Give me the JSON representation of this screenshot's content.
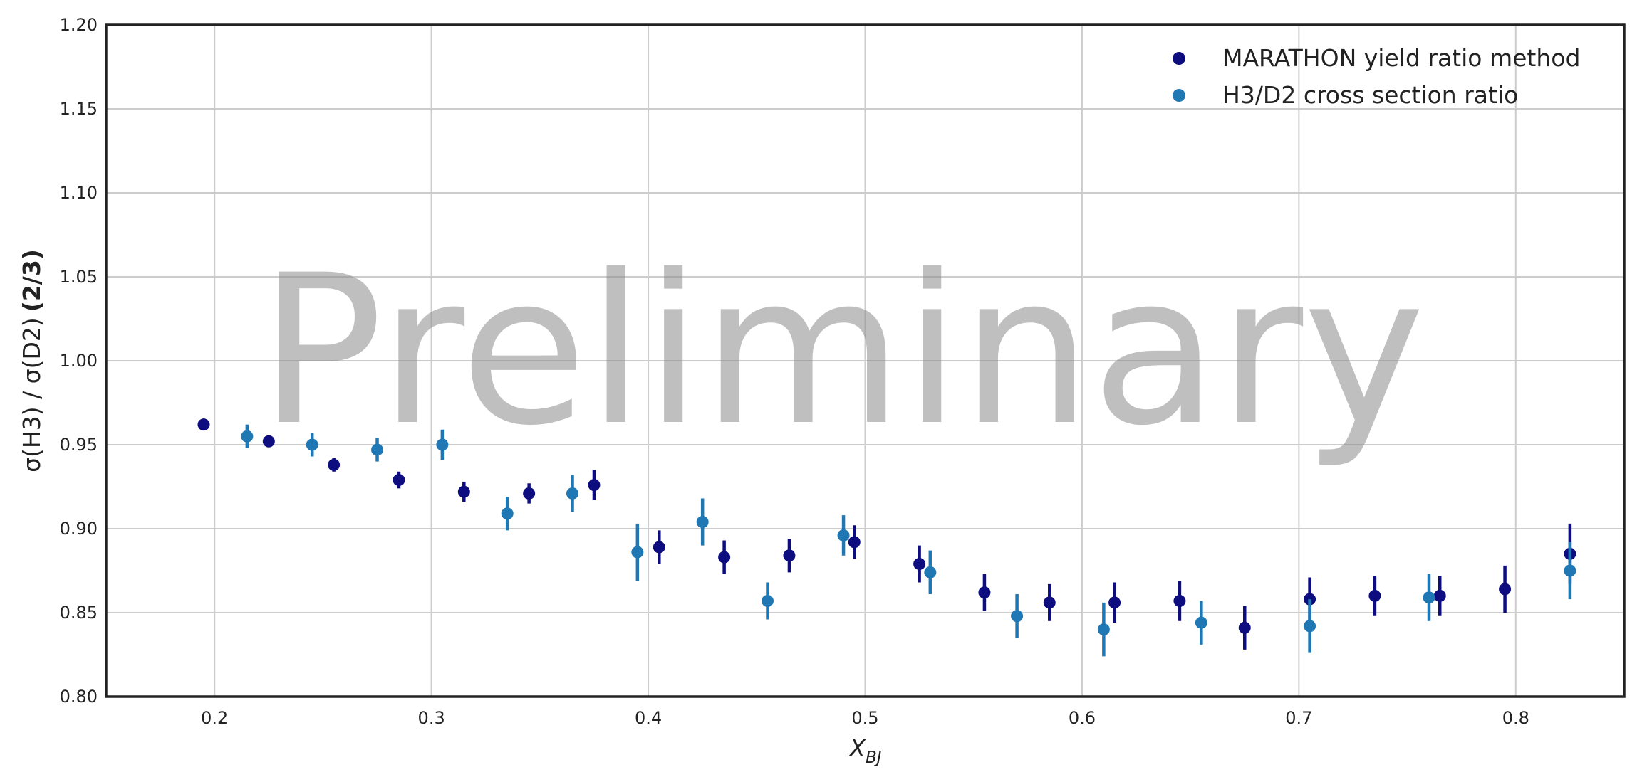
{
  "chart_data": {
    "type": "scatter",
    "title": "",
    "xlabel": "X",
    "xlabel_sub": "BJ",
    "ylabel": "σ(H3) / σ(D2)",
    "ylabel_bold": "(2/3)",
    "xlim": [
      0.15,
      0.85
    ],
    "ylim": [
      0.8,
      1.2
    ],
    "xticks": [
      "0.2",
      "0.3",
      "0.4",
      "0.5",
      "0.6",
      "0.7",
      "0.8"
    ],
    "yticks": [
      "0.80",
      "0.85",
      "0.90",
      "0.95",
      "1.00",
      "1.05",
      "1.10",
      "1.15",
      "1.20"
    ],
    "grid": true,
    "legend_position": "top-right",
    "watermark": "Preliminary",
    "series": [
      {
        "name": "MARATHON yield ratio method",
        "color": "#0d0d80",
        "points": [
          {
            "x": 0.195,
            "y": 0.962,
            "err": 0.003
          },
          {
            "x": 0.225,
            "y": 0.952,
            "err": 0.003
          },
          {
            "x": 0.255,
            "y": 0.938,
            "err": 0.004
          },
          {
            "x": 0.285,
            "y": 0.929,
            "err": 0.005
          },
          {
            "x": 0.315,
            "y": 0.922,
            "err": 0.006
          },
          {
            "x": 0.345,
            "y": 0.921,
            "err": 0.006
          },
          {
            "x": 0.375,
            "y": 0.926,
            "err": 0.009
          },
          {
            "x": 0.405,
            "y": 0.889,
            "err": 0.01
          },
          {
            "x": 0.435,
            "y": 0.883,
            "err": 0.01
          },
          {
            "x": 0.465,
            "y": 0.884,
            "err": 0.01
          },
          {
            "x": 0.495,
            "y": 0.892,
            "err": 0.01
          },
          {
            "x": 0.525,
            "y": 0.879,
            "err": 0.011
          },
          {
            "x": 0.555,
            "y": 0.862,
            "err": 0.011
          },
          {
            "x": 0.585,
            "y": 0.856,
            "err": 0.011
          },
          {
            "x": 0.615,
            "y": 0.856,
            "err": 0.012
          },
          {
            "x": 0.645,
            "y": 0.857,
            "err": 0.012
          },
          {
            "x": 0.675,
            "y": 0.841,
            "err": 0.013
          },
          {
            "x": 0.705,
            "y": 0.858,
            "err": 0.013
          },
          {
            "x": 0.735,
            "y": 0.86,
            "err": 0.012
          },
          {
            "x": 0.765,
            "y": 0.86,
            "err": 0.012
          },
          {
            "x": 0.795,
            "y": 0.864,
            "err": 0.014
          },
          {
            "x": 0.825,
            "y": 0.885,
            "err": 0.018
          }
        ]
      },
      {
        "name": "H3/D2 cross section ratio",
        "color": "#1f77b4",
        "points": [
          {
            "x": 0.215,
            "y": 0.955,
            "err": 0.007
          },
          {
            "x": 0.245,
            "y": 0.95,
            "err": 0.007
          },
          {
            "x": 0.275,
            "y": 0.947,
            "err": 0.007
          },
          {
            "x": 0.305,
            "y": 0.95,
            "err": 0.009
          },
          {
            "x": 0.335,
            "y": 0.909,
            "err": 0.01
          },
          {
            "x": 0.365,
            "y": 0.921,
            "err": 0.011
          },
          {
            "x": 0.395,
            "y": 0.886,
            "err": 0.017
          },
          {
            "x": 0.425,
            "y": 0.904,
            "err": 0.014
          },
          {
            "x": 0.455,
            "y": 0.857,
            "err": 0.011
          },
          {
            "x": 0.49,
            "y": 0.896,
            "err": 0.012
          },
          {
            "x": 0.53,
            "y": 0.874,
            "err": 0.013
          },
          {
            "x": 0.57,
            "y": 0.848,
            "err": 0.013
          },
          {
            "x": 0.61,
            "y": 0.84,
            "err": 0.016
          },
          {
            "x": 0.655,
            "y": 0.844,
            "err": 0.013
          },
          {
            "x": 0.705,
            "y": 0.842,
            "err": 0.016
          },
          {
            "x": 0.76,
            "y": 0.859,
            "err": 0.014
          },
          {
            "x": 0.825,
            "y": 0.875,
            "err": 0.017
          }
        ]
      }
    ]
  }
}
